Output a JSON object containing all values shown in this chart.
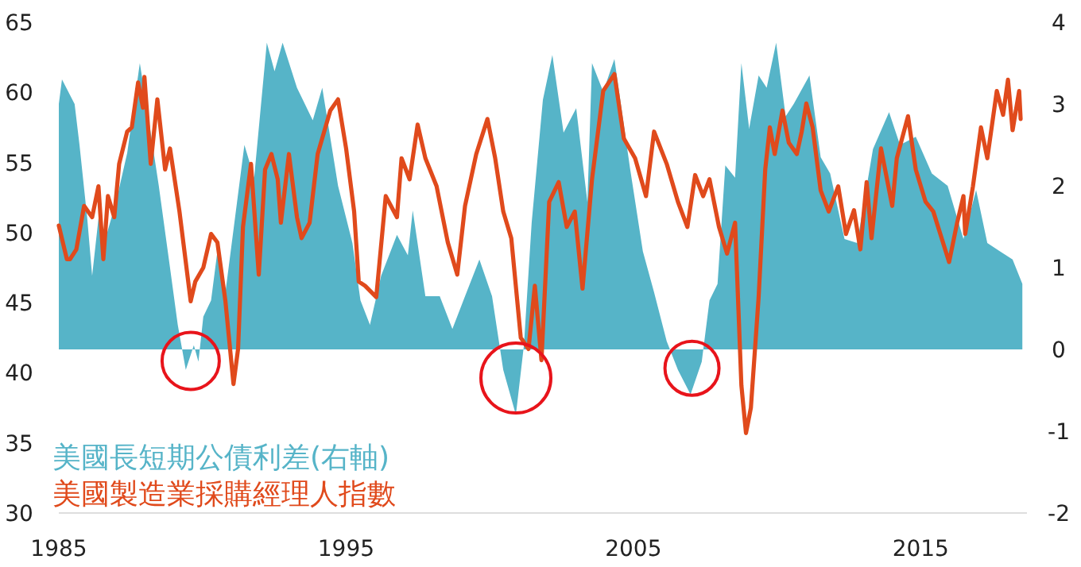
{
  "chart_data": {
    "type": "line",
    "xlim": [
      1985,
      2018.7
    ],
    "xticks": [
      1985,
      1995,
      2005,
      2015
    ],
    "ylim": [
      30,
      65
    ],
    "yticks": [
      30,
      35,
      40,
      45,
      50,
      55,
      60,
      65
    ],
    "y2lim": [
      -2,
      4
    ],
    "y2ticks": [
      -2,
      -1,
      0,
      1,
      2,
      3,
      4
    ],
    "legend": "bottom left",
    "series": [
      {
        "name": "美國長短期公債利差(右軸)",
        "type": "area",
        "axis": "y2",
        "color": "#56b4c8",
        "x": [
          1985.0,
          1985.11,
          1985.55,
          1985.72,
          1985.99,
          1986.16,
          1986.38,
          1986.66,
          1986.99,
          1987.38,
          1987.82,
          1988.09,
          1988.48,
          1988.87,
          1989.14,
          1989.42,
          1989.7,
          1989.86,
          1990.03,
          1990.3,
          1990.52,
          1990.8,
          1991.13,
          1991.46,
          1991.8,
          1992.24,
          1992.51,
          1992.79,
          1993.29,
          1993.84,
          1994.17,
          1994.72,
          1995.22,
          1995.5,
          1995.83,
          1996.22,
          1996.77,
          1997.15,
          1997.32,
          1997.76,
          1998.26,
          1998.7,
          1999.14,
          1999.64,
          2000.08,
          2000.47,
          2000.91,
          2001.19,
          2001.46,
          2001.85,
          2002.18,
          2002.57,
          2003.01,
          2003.4,
          2003.56,
          2003.95,
          2004.34,
          2004.89,
          2005.33,
          2005.72,
          2006.16,
          2006.55,
          2006.99,
          2007.38,
          2007.65,
          2007.93,
          2008.2,
          2008.54,
          2008.76,
          2009.03,
          2009.36,
          2009.64,
          2009.97,
          2010.3,
          2010.58,
          2011.13,
          2011.52,
          2011.85,
          2012.35,
          2012.79,
          2013.34,
          2013.9,
          2014.28,
          2014.83,
          2015.39,
          2015.94,
          2016.49,
          2016.93,
          2017.32,
          2017.76,
          2018.2,
          2018.54
        ],
        "values": [
          3.0,
          3.3,
          3.0,
          2.5,
          1.6,
          0.9,
          1.6,
          1.4,
          1.8,
          2.4,
          3.5,
          2.9,
          2.0,
          1.0,
          0.3,
          -0.25,
          0.05,
          -0.15,
          0.4,
          0.6,
          1.2,
          0.7,
          1.6,
          2.5,
          2.1,
          3.75,
          3.4,
          3.75,
          3.2,
          2.8,
          3.2,
          2.0,
          1.3,
          0.6,
          0.3,
          0.9,
          1.4,
          1.15,
          1.7,
          0.65,
          0.65,
          0.25,
          0.65,
          1.1,
          0.65,
          -0.25,
          -0.8,
          0.05,
          1.55,
          3.05,
          3.6,
          2.65,
          2.95,
          1.8,
          3.5,
          3.15,
          3.55,
          2.2,
          1.2,
          0.7,
          0.1,
          -0.25,
          -0.55,
          -0.15,
          0.6,
          0.8,
          2.25,
          2.1,
          3.5,
          2.7,
          3.35,
          3.2,
          3.75,
          2.85,
          3.0,
          3.35,
          2.35,
          2.15,
          1.35,
          1.3,
          2.45,
          2.9,
          2.5,
          2.6,
          2.15,
          2.0,
          1.35,
          1.95,
          1.3,
          1.2,
          1.1,
          0.8
        ]
      },
      {
        "name": "美國製造業採購經理人指數",
        "color": "#e04a1c",
        "x": [
          1985.0,
          1985.28,
          1985.39,
          1985.61,
          1985.88,
          1986.16,
          1986.38,
          1986.55,
          1986.71,
          1986.93,
          1987.1,
          1987.38,
          1987.54,
          1987.76,
          1987.93,
          1987.98,
          1988.2,
          1988.43,
          1988.7,
          1988.87,
          1989.2,
          1989.59,
          1989.75,
          1990.03,
          1990.3,
          1990.52,
          1990.8,
          1991.08,
          1991.24,
          1991.41,
          1991.69,
          1991.96,
          1992.18,
          1992.4,
          1992.62,
          1992.73,
          1993.01,
          1993.29,
          1993.45,
          1993.73,
          1994.01,
          1994.45,
          1994.72,
          1995.0,
          1995.28,
          1995.44,
          1995.66,
          1996.05,
          1996.38,
          1996.77,
          1996.93,
          1997.21,
          1997.49,
          1997.76,
          1998.15,
          1998.54,
          1998.87,
          1999.14,
          1999.53,
          1999.92,
          2000.19,
          2000.47,
          2000.75,
          2001.08,
          2001.35,
          2001.57,
          2001.8,
          2002.07,
          2002.4,
          2002.68,
          2002.96,
          2003.23,
          2003.56,
          2003.95,
          2004.34,
          2004.67,
          2005.06,
          2005.44,
          2005.72,
          2006.16,
          2006.55,
          2006.88,
          2007.15,
          2007.43,
          2007.65,
          2007.98,
          2008.26,
          2008.54,
          2008.76,
          2008.92,
          2009.09,
          2009.36,
          2009.59,
          2009.75,
          2009.92,
          2010.19,
          2010.41,
          2010.69,
          2010.86,
          2011.02,
          2011.24,
          2011.52,
          2011.8,
          2012.13,
          2012.4,
          2012.68,
          2012.9,
          2013.12,
          2013.29,
          2013.62,
          2014.01,
          2014.17,
          2014.56,
          2014.83,
          2015.17,
          2015.44,
          2015.99,
          2016.27,
          2016.49,
          2016.55,
          2016.82,
          2017.1,
          2017.32,
          2017.65,
          2017.87,
          2018.04,
          2018.2,
          2018.43,
          2018.48
        ],
        "values": [
          50.5,
          48.1,
          48.1,
          48.8,
          51.9,
          51.1,
          53.3,
          48.1,
          52.6,
          51.1,
          54.9,
          57.2,
          57.5,
          60.7,
          58.9,
          61.1,
          54.9,
          59.5,
          54.5,
          56.0,
          51.5,
          45.1,
          46.5,
          47.5,
          49.9,
          49.3,
          45.1,
          39.2,
          41.7,
          50.4,
          54.9,
          47.0,
          54.5,
          55.6,
          53.8,
          50.7,
          55.6,
          51.1,
          49.6,
          50.7,
          55.6,
          58.7,
          59.5,
          56.0,
          51.5,
          46.5,
          46.2,
          45.4,
          52.6,
          51.1,
          55.3,
          53.8,
          57.7,
          55.3,
          53.3,
          49.3,
          47.0,
          51.9,
          55.6,
          58.1,
          55.3,
          51.5,
          49.6,
          42.5,
          41.7,
          46.2,
          40.9,
          52.2,
          53.6,
          50.4,
          51.5,
          46.0,
          53.8,
          60.1,
          61.3,
          56.7,
          55.3,
          52.6,
          57.2,
          54.9,
          52.2,
          50.4,
          54.1,
          52.6,
          53.8,
          50.4,
          48.5,
          50.7,
          39.1,
          35.7,
          37.5,
          45.4,
          54.5,
          57.5,
          55.6,
          58.7,
          56.4,
          55.6,
          57.2,
          59.2,
          57.5,
          53.0,
          51.5,
          53.3,
          49.9,
          51.6,
          48.8,
          53.6,
          49.6,
          56.0,
          51.9,
          55.3,
          58.3,
          54.5,
          52.2,
          51.5,
          47.9,
          50.7,
          52.6,
          49.9,
          53.3,
          57.5,
          55.3,
          60.1,
          58.4,
          60.9,
          57.3,
          60.1,
          58.1
        ]
      }
    ]
  }
}
